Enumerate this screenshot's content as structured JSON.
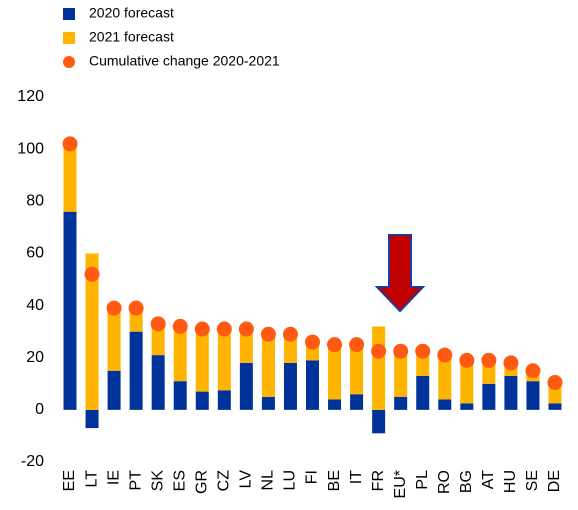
{
  "chart_data": {
    "type": "bar",
    "stacked": true,
    "categories": [
      "EE",
      "LT",
      "IE",
      "PT",
      "SK",
      "ES",
      "GR",
      "CZ",
      "LV",
      "NL",
      "LU",
      "FI",
      "BE",
      "IT",
      "FR",
      "EU*",
      "PL",
      "RO",
      "BG",
      "AT",
      "HU",
      "SE",
      "DE"
    ],
    "series": [
      {
        "name": "2020 forecast",
        "color": "#003399",
        "values": [
          76,
          -7,
          15,
          30,
          21,
          11,
          7,
          7.5,
          18,
          5,
          18,
          19,
          4,
          6,
          -9,
          5,
          13,
          4,
          2.5,
          10,
          13,
          11,
          2.5
        ]
      },
      {
        "name": "2021 forecast",
        "color": "#ffb400",
        "values": [
          26,
          60,
          24,
          9,
          12,
          21,
          24,
          24,
          13,
          24,
          11,
          7,
          21,
          19,
          32,
          18,
          10,
          17,
          17,
          9,
          5,
          4,
          8
        ]
      },
      {
        "name": "Cumulative change 2020-2021",
        "color": "#ff5a14",
        "kind": "dot",
        "values": [
          102,
          52,
          39,
          39,
          33,
          32,
          31,
          31,
          31,
          29,
          29,
          26,
          25,
          25,
          22.5,
          22.5,
          22.5,
          21,
          19,
          19,
          18,
          15,
          10.5
        ]
      }
    ],
    "ylim": [
      -20,
      120
    ],
    "yticks": [
      -20,
      0,
      20,
      40,
      60,
      80,
      100,
      120
    ],
    "grid": false
  }
}
